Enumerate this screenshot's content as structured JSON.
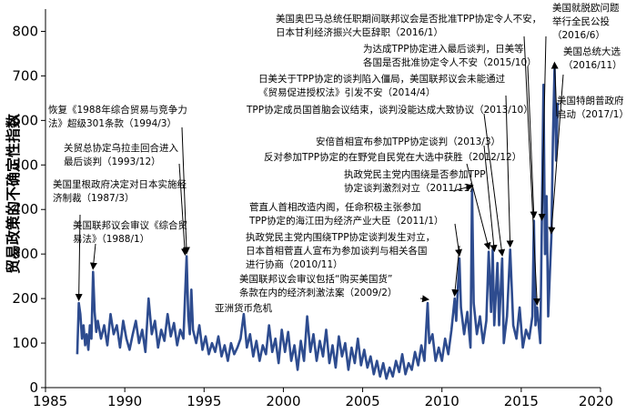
{
  "chart_data": {
    "type": "line",
    "title": "",
    "xlabel": "",
    "ylabel": "贸易政策的不确定性指数",
    "xlim": [
      1985,
      2020
    ],
    "ylim": [
      0,
      850
    ],
    "xticks": [
      1985,
      1990,
      1995,
      2000,
      2005,
      2010,
      2015,
      2020
    ],
    "yticks": [
      0,
      100,
      200,
      300,
      400,
      500,
      600,
      700,
      800
    ],
    "grid": false,
    "line_color": "#2e4c8f",
    "series": [
      {
        "values": [
          [
            1987.0,
            75
          ],
          [
            1987.1,
            190
          ],
          [
            1987.2,
            165
          ],
          [
            1987.3,
            110
          ],
          [
            1987.4,
            140
          ],
          [
            1987.5,
            95
          ],
          [
            1987.6,
            120
          ],
          [
            1987.7,
            85
          ],
          [
            1987.8,
            140
          ],
          [
            1987.9,
            110
          ],
          [
            1988.0,
            260
          ],
          [
            1988.1,
            170
          ],
          [
            1988.2,
            125
          ],
          [
            1988.3,
            150
          ],
          [
            1988.5,
            110
          ],
          [
            1988.7,
            140
          ],
          [
            1988.9,
            95
          ],
          [
            1989.1,
            165
          ],
          [
            1989.3,
            120
          ],
          [
            1989.5,
            140
          ],
          [
            1989.7,
            90
          ],
          [
            1989.9,
            150
          ],
          [
            1990.1,
            110
          ],
          [
            1990.3,
            85
          ],
          [
            1990.5,
            120
          ],
          [
            1990.7,
            150
          ],
          [
            1990.9,
            100
          ],
          [
            1991.1,
            130
          ],
          [
            1991.3,
            80
          ],
          [
            1991.5,
            200
          ],
          [
            1991.7,
            120
          ],
          [
            1991.9,
            150
          ],
          [
            1992.1,
            90
          ],
          [
            1992.3,
            130
          ],
          [
            1992.5,
            105
          ],
          [
            1992.7,
            165
          ],
          [
            1992.9,
            115
          ],
          [
            1993.1,
            145
          ],
          [
            1993.3,
            95
          ],
          [
            1993.5,
            130
          ],
          [
            1993.7,
            110
          ],
          [
            1993.9,
            295
          ],
          [
            1994.0,
            160
          ],
          [
            1994.1,
            120
          ],
          [
            1994.2,
            220
          ],
          [
            1994.3,
            130
          ],
          [
            1994.5,
            100
          ],
          [
            1994.7,
            140
          ],
          [
            1994.9,
            85
          ],
          [
            1995.1,
            115
          ],
          [
            1995.3,
            75
          ],
          [
            1995.5,
            100
          ],
          [
            1995.7,
            80
          ],
          [
            1995.9,
            115
          ],
          [
            1996.1,
            70
          ],
          [
            1996.3,
            95
          ],
          [
            1996.5,
            60
          ],
          [
            1996.7,
            100
          ],
          [
            1996.9,
            75
          ],
          [
            1997.1,
            90
          ],
          [
            1997.3,
            110
          ],
          [
            1997.5,
            165
          ],
          [
            1997.7,
            90
          ],
          [
            1997.9,
            120
          ],
          [
            1998.1,
            70
          ],
          [
            1998.3,
            105
          ],
          [
            1998.5,
            60
          ],
          [
            1998.7,
            95
          ],
          [
            1998.9,
            75
          ],
          [
            1999.1,
            140
          ],
          [
            1999.3,
            80
          ],
          [
            1999.5,
            110
          ],
          [
            1999.7,
            55
          ],
          [
            1999.9,
            130
          ],
          [
            2000.1,
            80
          ],
          [
            2000.3,
            125
          ],
          [
            2000.5,
            60
          ],
          [
            2000.7,
            95
          ],
          [
            2000.9,
            40
          ],
          [
            2001.1,
            105
          ],
          [
            2001.3,
            60
          ],
          [
            2001.5,
            160
          ],
          [
            2001.7,
            80
          ],
          [
            2001.9,
            120
          ],
          [
            2002.1,
            60
          ],
          [
            2002.3,
            105
          ],
          [
            2002.5,
            70
          ],
          [
            2002.7,
            130
          ],
          [
            2002.9,
            55
          ],
          [
            2003.1,
            95
          ],
          [
            2003.3,
            45
          ],
          [
            2003.5,
            115
          ],
          [
            2003.7,
            70
          ],
          [
            2003.9,
            100
          ],
          [
            2004.1,
            40
          ],
          [
            2004.3,
            90
          ],
          [
            2004.5,
            55
          ],
          [
            2004.7,
            110
          ],
          [
            2004.9,
            50
          ],
          [
            2005.1,
            85
          ],
          [
            2005.3,
            45
          ],
          [
            2005.5,
            70
          ],
          [
            2005.7,
            30
          ],
          [
            2005.9,
            60
          ],
          [
            2006.1,
            25
          ],
          [
            2006.3,
            55
          ],
          [
            2006.5,
            20
          ],
          [
            2006.7,
            45
          ],
          [
            2006.9,
            25
          ],
          [
            2007.1,
            60
          ],
          [
            2007.3,
            35
          ],
          [
            2007.5,
            75
          ],
          [
            2007.7,
            30
          ],
          [
            2007.9,
            55
          ],
          [
            2008.1,
            40
          ],
          [
            2008.3,
            80
          ],
          [
            2008.5,
            50
          ],
          [
            2008.7,
            95
          ],
          [
            2008.9,
            60
          ],
          [
            2009.1,
            190
          ],
          [
            2009.2,
            100
          ],
          [
            2009.4,
            120
          ],
          [
            2009.6,
            60
          ],
          [
            2009.8,
            90
          ],
          [
            2010.0,
            60
          ],
          [
            2010.2,
            110
          ],
          [
            2010.4,
            75
          ],
          [
            2010.6,
            130
          ],
          [
            2010.8,
            200
          ],
          [
            2010.9,
            150
          ],
          [
            2011.1,
            290
          ],
          [
            2011.2,
            180
          ],
          [
            2011.4,
            120
          ],
          [
            2011.6,
            170
          ],
          [
            2011.8,
            90
          ],
          [
            2011.9,
            445
          ],
          [
            2012.0,
            190
          ],
          [
            2012.2,
            120
          ],
          [
            2012.4,
            160
          ],
          [
            2012.6,
            100
          ],
          [
            2012.8,
            150
          ],
          [
            2012.95,
            305
          ],
          [
            2013.1,
            170
          ],
          [
            2013.2,
            310
          ],
          [
            2013.3,
            140
          ],
          [
            2013.5,
            280
          ],
          [
            2013.6,
            140
          ],
          [
            2013.8,
            290
          ],
          [
            2013.9,
            100
          ],
          [
            2014.1,
            160
          ],
          [
            2014.3,
            310
          ],
          [
            2014.5,
            140
          ],
          [
            2014.7,
            110
          ],
          [
            2014.9,
            180
          ],
          [
            2015.1,
            90
          ],
          [
            2015.3,
            130
          ],
          [
            2015.5,
            110
          ],
          [
            2015.7,
            160
          ],
          [
            2015.8,
            375
          ],
          [
            2015.9,
            140
          ],
          [
            2016.0,
            180
          ],
          [
            2016.2,
            100
          ],
          [
            2016.3,
            370
          ],
          [
            2016.4,
            680
          ],
          [
            2016.5,
            300
          ],
          [
            2016.6,
            430
          ],
          [
            2016.7,
            160
          ],
          [
            2016.8,
            250
          ],
          [
            2016.9,
            340
          ],
          [
            2017.0,
            560
          ],
          [
            2017.1,
            720
          ],
          [
            2017.2,
            510
          ],
          [
            2017.3,
            640
          ]
        ]
      }
    ],
    "annotations": [
      {
        "lines": [
          "恢复《1988年综合贸易与竞争力",
          "法》超级301条款（1994/3）"
        ]
      },
      {
        "lines": [
          "关贸总协定乌拉圭回合进入",
          "最后谈判（1993/12）"
        ]
      },
      {
        "lines": [
          "美国里根政府决定对日本实施经",
          "济制裁（1987/3）"
        ]
      },
      {
        "lines": [
          "美国联邦议会审议《综合贸",
          "易法》（1988/1）"
        ]
      },
      {
        "lines": [
          "亚洲货币危机"
        ]
      },
      {
        "lines": [
          "美国联邦议会审议包括“购买美国货”",
          "条款在内的经济刺激法案（2009/2）"
        ]
      },
      {
        "lines": [
          "执政党民主党内围绕TPP协定谈判发生对立，",
          "日本首相菅直人宣布为参加谈判与相关各国",
          "进行协商（2010/11）"
        ]
      },
      {
        "lines": [
          "菅直人首相改造内阁，任命积极主张参加",
          "TPP协定的海江田为经济产业大臣（2011/1）"
        ]
      },
      {
        "lines": [
          "执政党民主党内围绕是否参加TPP",
          "协定谈判激烈对立（2011/11）"
        ]
      },
      {
        "lines": [
          "反对参加TPP协定的在野党自民党在大选中获胜（2012/12）"
        ]
      },
      {
        "lines": [
          "安倍首相宣布参加TPP协定谈判（2013/3）"
        ]
      },
      {
        "lines": [
          "TPP协定成员国首脑会议结束，谈判没能达成大致协议（2013/10）"
        ]
      },
      {
        "lines": [
          "日美关于TPP协定的谈判陷入僵局，美国联邦议会未能通过",
          "《贸易促进授权法》引发不安（2014/4）"
        ]
      },
      {
        "lines": [
          "为达成TPP协定进入最后谈判，日美等",
          "各国是否批准协定令人不安（2015/10）"
        ]
      },
      {
        "lines": [
          "美国奥巴马总统任职期间联邦议会是否批准TPP协定令人不安，",
          "日本甘利经济振兴大臣辞职（2016/1）"
        ]
      },
      {
        "lines": [
          "美国就脱欧问题",
          "举行全民公投",
          "（2016/6）"
        ]
      },
      {
        "lines": [
          "美国总统大选",
          "（2016/11）"
        ]
      },
      {
        "lines": [
          "美国特朗普政府",
          "启动（2017/1）"
        ]
      }
    ]
  }
}
